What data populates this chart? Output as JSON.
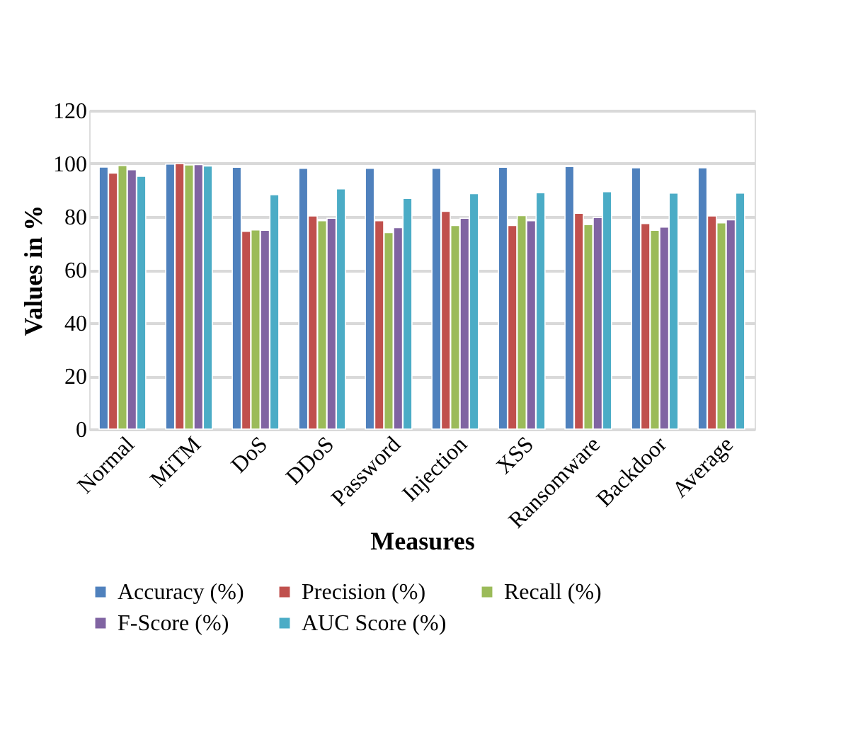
{
  "chart_data": {
    "type": "bar",
    "xlabel": "Measures",
    "ylabel": "Values in %",
    "categories": [
      "Normal",
      "MiTM",
      "DoS",
      "DDoS",
      "Password",
      "Injection",
      "XSS",
      "Ransomware",
      "Backdoor",
      "Average"
    ],
    "series": [
      {
        "name": "Accuracy (%)",
        "color": "#4f81bd",
        "values": [
          98.7,
          99.8,
          98.6,
          98.2,
          98.2,
          98.2,
          98.6,
          98.9,
          98.4,
          98.4
        ]
      },
      {
        "name": "Precision (%)",
        "color": "#c0504d",
        "values": [
          96.4,
          100,
          74.5,
          80.3,
          78.5,
          82.0,
          76.7,
          81.3,
          77.4,
          80.3
        ]
      },
      {
        "name": "Recall (%)",
        "color": "#9bbb59",
        "values": [
          99.3,
          99.5,
          75.0,
          78.5,
          74.0,
          76.7,
          80.4,
          77.0,
          74.9,
          77.7
        ]
      },
      {
        "name": "F-Score (%)",
        "color": "#8064a2",
        "values": [
          97.7,
          99.6,
          74.9,
          79.4,
          75.9,
          79.4,
          78.5,
          79.7,
          76.1,
          78.8
        ]
      },
      {
        "name": "AUC Score (%)",
        "color": "#4bacc6",
        "values": [
          95.2,
          99.1,
          88.3,
          90.5,
          86.9,
          88.7,
          89.0,
          89.4,
          88.9,
          88.9
        ]
      }
    ],
    "ylim": [
      0,
      120
    ],
    "yticks": [
      0,
      20,
      40,
      60,
      80,
      100,
      120
    ],
    "grid": "y",
    "legend": "bottom"
  }
}
